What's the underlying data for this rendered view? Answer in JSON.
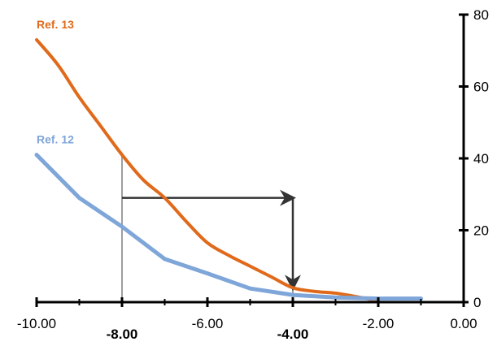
{
  "chart_data": {
    "type": "line",
    "xlim": [
      -10,
      0
    ],
    "ylim": [
      0,
      80
    ],
    "x_ticks": [
      -10,
      -8,
      -6,
      -4,
      -2,
      0
    ],
    "x_tick_labels": [
      "-10.00",
      "-8.00",
      "-6.00",
      "-4.00",
      "-2.00",
      "0.00"
    ],
    "x_tick_bold": [
      false,
      true,
      false,
      true,
      false,
      false
    ],
    "y_ticks": [
      0,
      20,
      40,
      60,
      80
    ],
    "y_tick_labels": [
      "0",
      "20",
      "40",
      "60",
      "80"
    ],
    "grid": false,
    "y_axis_side": "right",
    "series": [
      {
        "name": "Ref. 13",
        "color": "#e06a1b",
        "x": [
          -10,
          -9.5,
          -9,
          -8.5,
          -8,
          -7.5,
          -7,
          -6.5,
          -6,
          -5.5,
          -5,
          -4.5,
          -4,
          -3.5,
          -3,
          -2.5,
          -2
        ],
        "y": [
          73,
          66,
          57,
          49,
          41,
          34,
          29,
          22.5,
          16.5,
          13,
          10,
          7,
          4,
          3,
          2.5,
          1.5,
          0.3
        ]
      },
      {
        "name": "Ref. 12",
        "color": "#7fa6d9",
        "x": [
          -10,
          -9,
          -8,
          -7,
          -6,
          -5,
          -4,
          -3,
          -2,
          -1.8,
          -1
        ],
        "y": [
          41,
          29,
          21,
          12,
          8,
          3.8,
          2,
          1.3,
          1,
          1,
          1
        ]
      }
    ],
    "annotations": {
      "vline_color": "#9e9e9e",
      "arrow_color": "#333333",
      "vlines": [
        {
          "x": -8,
          "y_top": 41
        },
        {
          "x": -4,
          "y_top": 4
        }
      ],
      "h_arrow": {
        "x_from": -8,
        "x_to": -4,
        "y": 29
      },
      "v_arrow": {
        "x": -4,
        "y_from": 29,
        "y_to": 4
      }
    }
  }
}
